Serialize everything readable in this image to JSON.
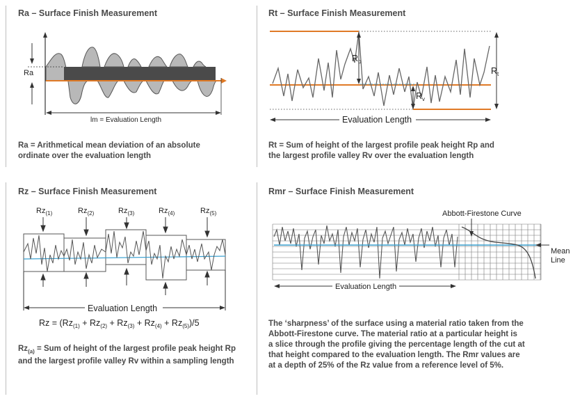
{
  "panels": {
    "ra": {
      "title": "Ra – Surface Finish Measurement",
      "label_ra": "Ra",
      "label_length": "lm = Evaluation Length",
      "desc_line1": "Ra = Arithmetical mean deviation of an absolute",
      "desc_line2": "ordinate over the evaluation length"
    },
    "rt": {
      "title": "Rt – Surface Finish Measurement",
      "label_rp_main": "R",
      "label_rp_sub": "p",
      "label_rv_main": "R",
      "label_rv_sub": "v",
      "label_rt_main": "R",
      "label_rt_sub": "t",
      "label_length": "Evaluation Length",
      "desc_line1": "Rt = Sum of height of the largest profile peak height Rp and",
      "desc_line2": "the largest profile valley Rv over the evaluation length"
    },
    "rz": {
      "title": "Rz – Surface Finish Measurement",
      "labels": [
        "Rz(1)",
        "Rz(2)",
        "Rz(3)",
        "Rz(4)",
        "Rz(5)"
      ],
      "label_length": "Evaluation Length",
      "formula": "Rz = (Rz(1) + Rz(2) + Rz(3) + Rz(4) + Rz(5))/5",
      "desc_line1_prefix": "Rz",
      "desc_line1_sub": "(a)",
      "desc_line1_rest": " = Sum of height of the largest profile peak height Rp",
      "desc_line2": "and the largest profile valley Rv within a sampling length"
    },
    "rmr": {
      "title": "Rmr – Surface Finish Measurement",
      "label_curve": "Abbott-Firestone Curve",
      "label_mean1": "Mean",
      "label_mean2": "Line",
      "label_length": "Evaluation Length",
      "desc_lines": [
        "The ‘sharpness’ of the surface using a material ratio taken from the",
        "Abbott-Firestone curve. The material ratio at a particular height is",
        "a slice through the profile giving the percentage length of the cut at",
        "that height compared to the evaluation length. The Rmr values are",
        "at a depth of 25% of the Rz value from a reference level of 5%."
      ]
    }
  },
  "colors": {
    "orange": "#e07a26",
    "blue": "#3aa0d0",
    "profile": "#555555",
    "dark_fill": "#4a4a4a",
    "light_fill": "#b8b8b8"
  }
}
